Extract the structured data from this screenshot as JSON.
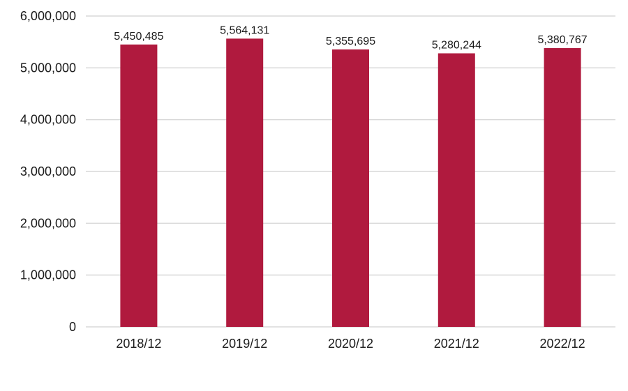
{
  "chart_data": {
    "type": "bar",
    "title": "",
    "xlabel": "",
    "ylabel": "",
    "categories": [
      "2018/12",
      "2019/12",
      "2020/12",
      "2021/12",
      "2022/12"
    ],
    "values": [
      5450485,
      5564131,
      5355695,
      5280244,
      5380767
    ],
    "value_labels": [
      "5,450,485",
      "5,564,131",
      "5,355,695",
      "5,280,244",
      "5,380,767"
    ],
    "ylim": [
      0,
      6000000
    ],
    "yticks": [
      0,
      1000000,
      2000000,
      3000000,
      4000000,
      5000000,
      6000000
    ],
    "ytick_labels": [
      "0",
      "1,000,000",
      "2,000,000",
      "3,000,000",
      "4,000,000",
      "5,000,000",
      "6,000,000"
    ],
    "grid": true,
    "legend": "none",
    "colors": {
      "bar": "#b01a3e",
      "grid": "#d9d9d9"
    }
  }
}
